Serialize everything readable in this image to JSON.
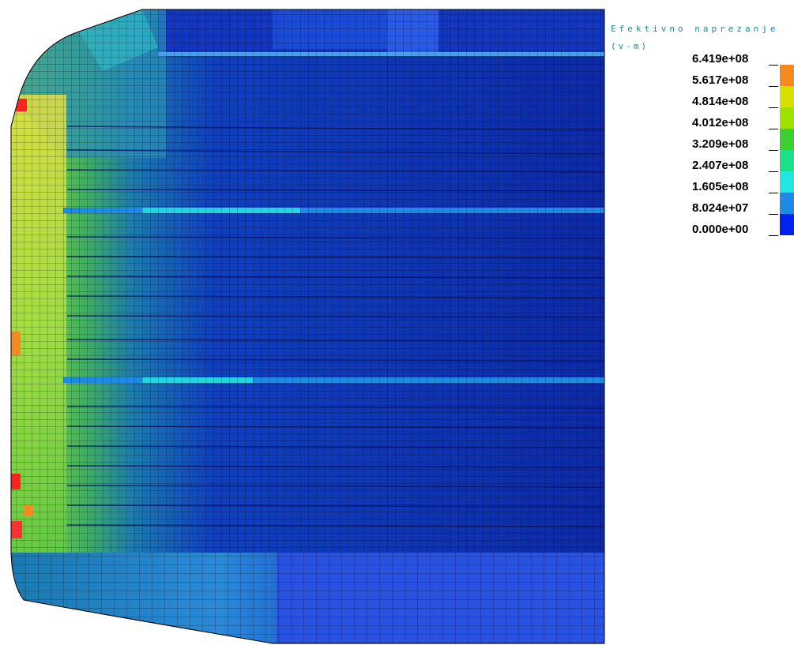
{
  "legend": {
    "title": "Efektivno naprezanje",
    "unit": "(v-m)",
    "labels": [
      "6.419e+08",
      "5.617e+08",
      "4.814e+08",
      "4.012e+08",
      "3.209e+08",
      "2.407e+08",
      "1.605e+08",
      "8.024e+07",
      "0.000e+00"
    ],
    "colors": [
      "#ff0000",
      "#f58a1e",
      "#d8e000",
      "#9ee000",
      "#3ccf30",
      "#1ae08c",
      "#20e8e0",
      "#1e8ae8",
      "#0022f0"
    ]
  }
}
